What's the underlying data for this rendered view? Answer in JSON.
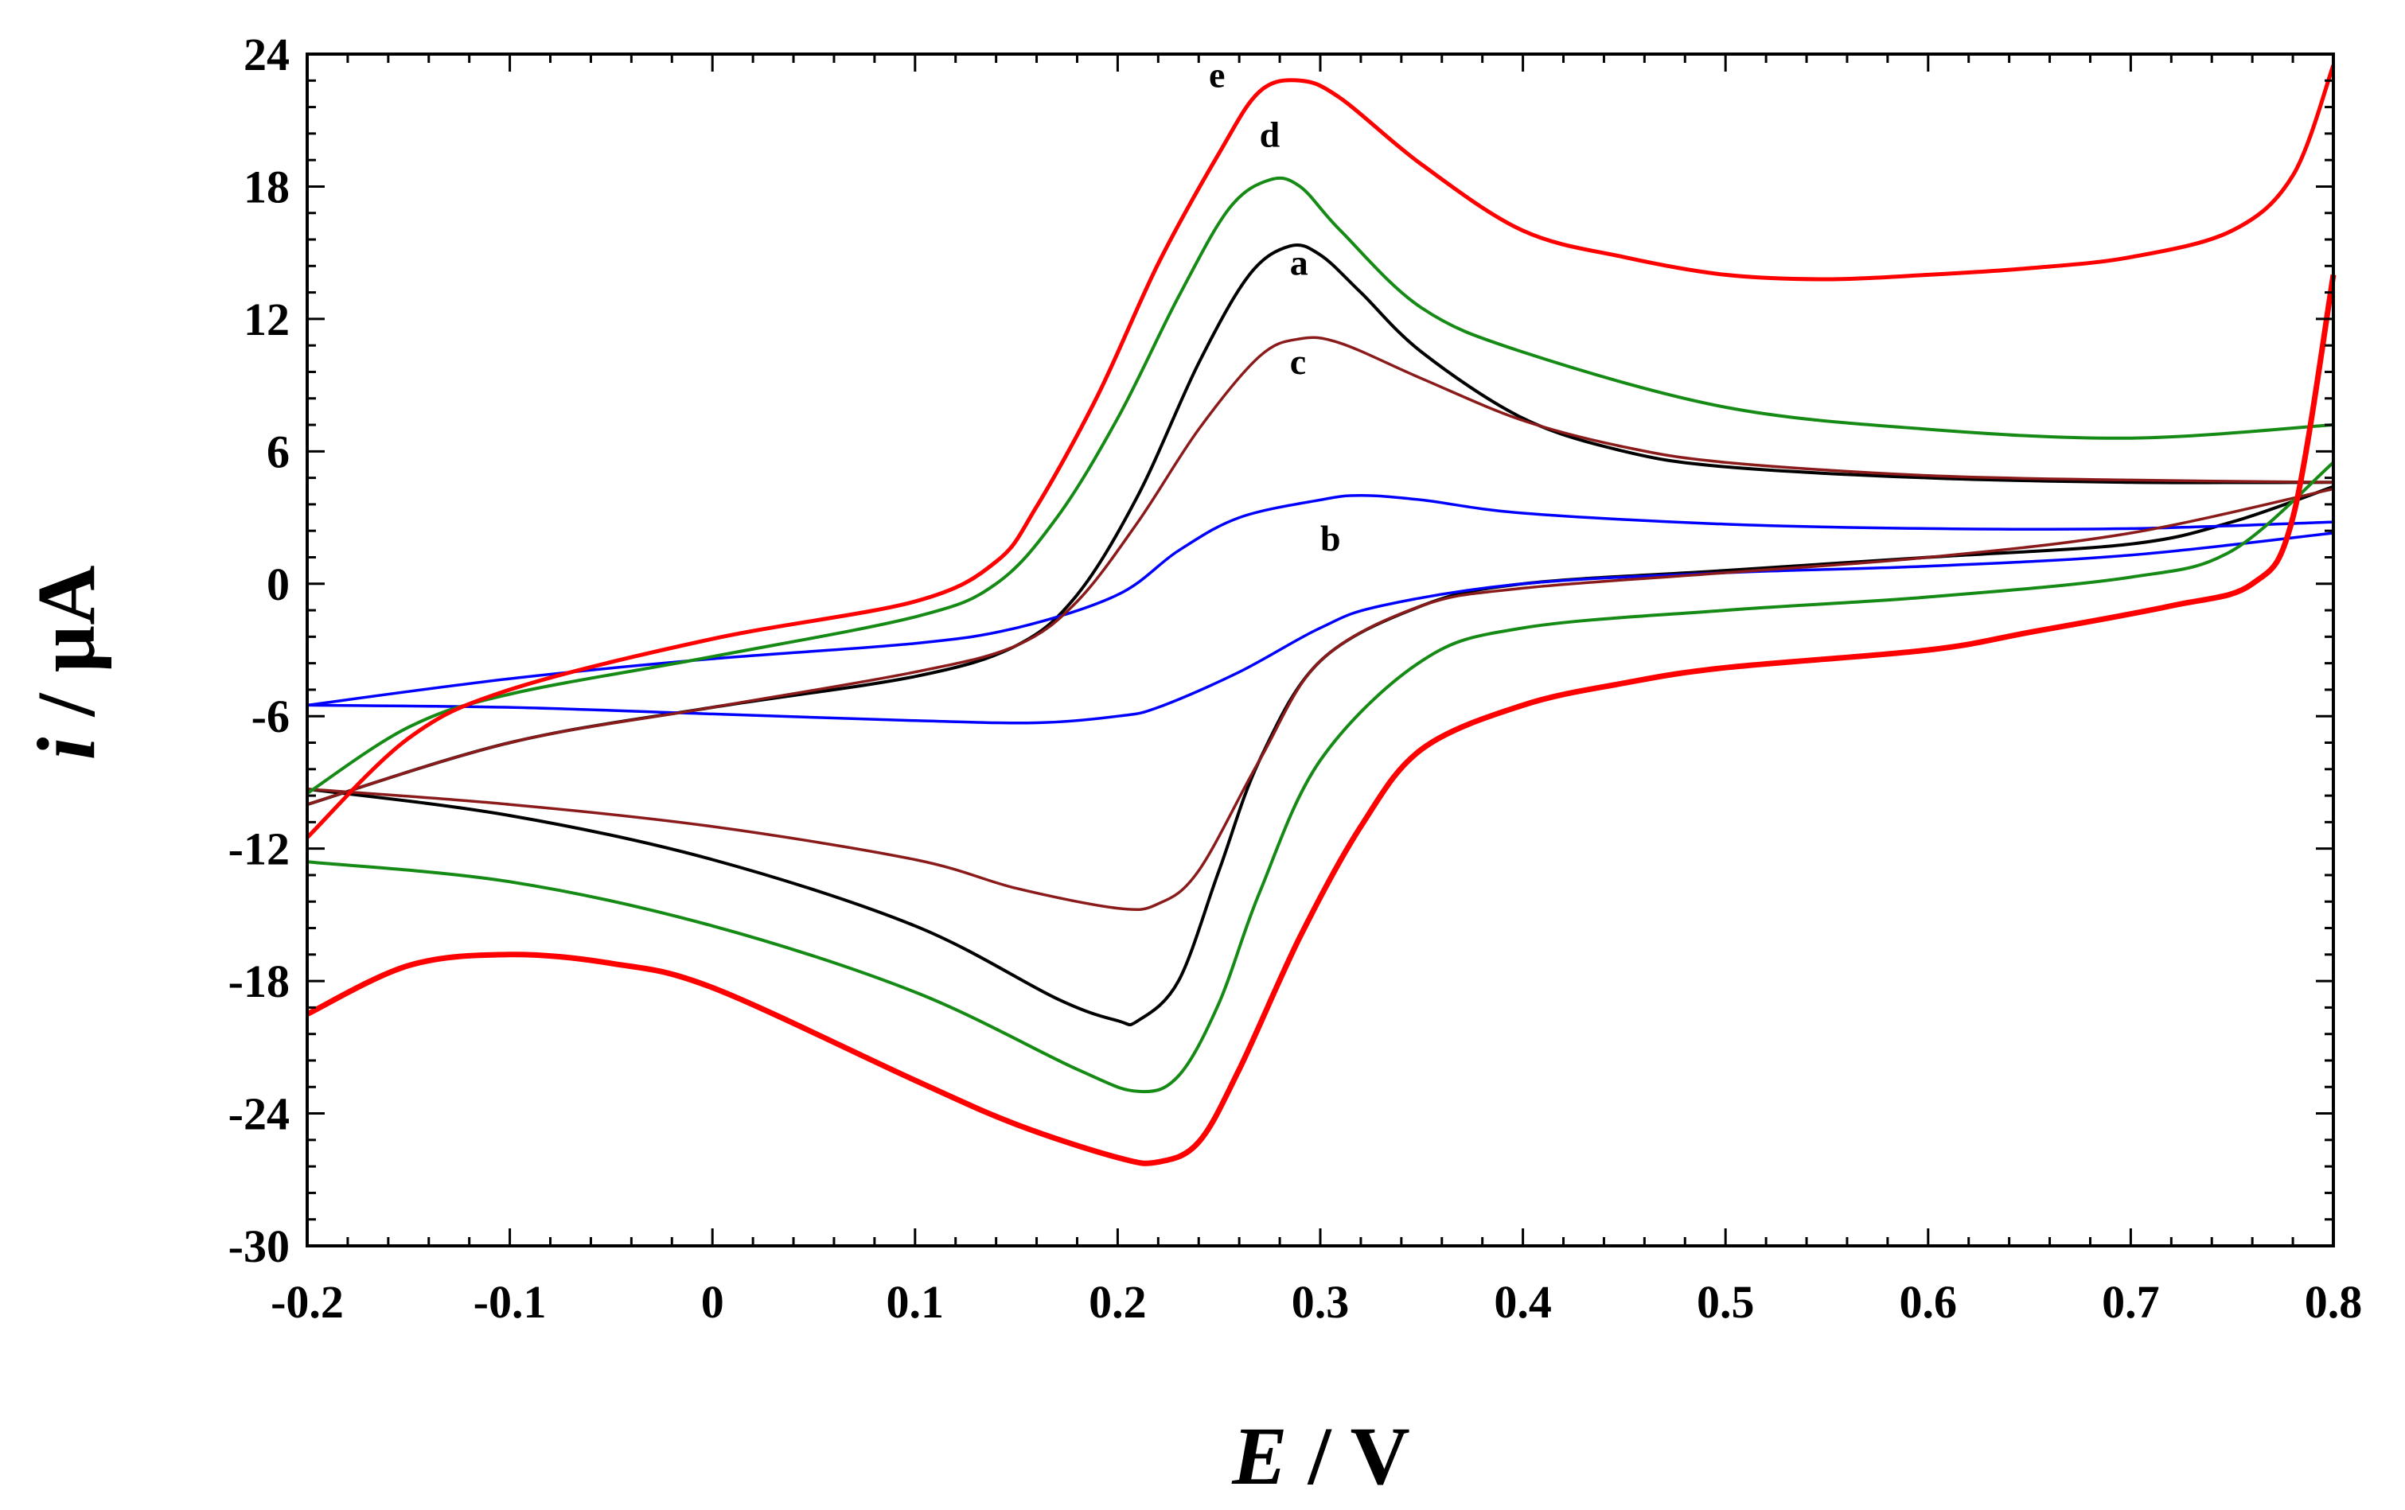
{
  "chart_data": {
    "type": "line",
    "title": "",
    "xlabel_var": "E",
    "xlabel_unit": " / V",
    "ylabel_var": "i",
    "ylabel_unit": " / µA",
    "xlim": [
      -0.2,
      0.8
    ],
    "ylim": [
      -30,
      24
    ],
    "x_ticks": [
      -0.2,
      -0.1,
      0,
      0.1,
      0.2,
      0.3,
      0.4,
      0.5,
      0.6,
      0.7,
      0.8
    ],
    "x_tick_labels": [
      "-0.2",
      "-0.1",
      "0",
      "0.1",
      "0.2",
      "0.3",
      "0.4",
      "0.5",
      "0.6",
      "0.7",
      "0.8"
    ],
    "y_ticks": [
      24,
      18,
      12,
      6,
      0,
      -6,
      -12,
      -18,
      -24,
      -30
    ],
    "y_tick_labels": [
      "24",
      "18",
      "12",
      "6",
      "0",
      "-6",
      "-12",
      "-18",
      "-24",
      "-30"
    ],
    "grid": false,
    "series": [
      {
        "name": "a",
        "color": "#000000",
        "label_at": [
          0.285,
          14
        ],
        "anodic": [
          [
            -0.2,
            -10
          ],
          [
            -0.1,
            -7.2
          ],
          [
            0,
            -5.6
          ],
          [
            0.1,
            -4.2
          ],
          [
            0.15,
            -2.8
          ],
          [
            0.18,
            -0.5
          ],
          [
            0.21,
            4
          ],
          [
            0.24,
            10
          ],
          [
            0.265,
            14
          ],
          [
            0.285,
            15.3
          ],
          [
            0.3,
            14.9
          ],
          [
            0.32,
            13.2
          ],
          [
            0.35,
            10.5
          ],
          [
            0.4,
            7.5
          ],
          [
            0.45,
            6
          ],
          [
            0.5,
            5.3
          ],
          [
            0.6,
            4.8
          ],
          [
            0.7,
            4.6
          ],
          [
            0.8,
            4.6
          ]
        ],
        "cathodic": [
          [
            0.8,
            4.4
          ],
          [
            0.75,
            2.8
          ],
          [
            0.7,
            1.8
          ],
          [
            0.6,
            1.2
          ],
          [
            0.5,
            0.6
          ],
          [
            0.4,
            0
          ],
          [
            0.35,
            -1
          ],
          [
            0.3,
            -3.5
          ],
          [
            0.27,
            -8
          ],
          [
            0.25,
            -13
          ],
          [
            0.23,
            -18
          ],
          [
            0.21,
            -19.8
          ],
          [
            0.2,
            -19.8
          ],
          [
            0.17,
            -18.8
          ],
          [
            0.1,
            -15.5
          ],
          [
            0,
            -12.5
          ],
          [
            -0.1,
            -10.5
          ],
          [
            -0.2,
            -9.3
          ]
        ]
      },
      {
        "name": "b",
        "color": "#0000ff",
        "label_at": [
          0.3,
          1.5
        ],
        "anodic": [
          [
            -0.2,
            -5.5
          ],
          [
            -0.1,
            -4.3
          ],
          [
            0,
            -3.4
          ],
          [
            0.1,
            -2.7
          ],
          [
            0.15,
            -2
          ],
          [
            0.2,
            -0.5
          ],
          [
            0.23,
            1.5
          ],
          [
            0.26,
            3
          ],
          [
            0.3,
            3.8
          ],
          [
            0.32,
            4
          ],
          [
            0.35,
            3.8
          ],
          [
            0.4,
            3.2
          ],
          [
            0.5,
            2.7
          ],
          [
            0.6,
            2.5
          ],
          [
            0.7,
            2.5
          ],
          [
            0.8,
            2.8
          ]
        ],
        "cathodic": [
          [
            0.8,
            2.3
          ],
          [
            0.7,
            1.3
          ],
          [
            0.6,
            0.8
          ],
          [
            0.5,
            0.5
          ],
          [
            0.4,
            0
          ],
          [
            0.33,
            -1
          ],
          [
            0.3,
            -2
          ],
          [
            0.26,
            -4
          ],
          [
            0.22,
            -5.6
          ],
          [
            0.2,
            -6
          ],
          [
            0.16,
            -6.3
          ],
          [
            0.1,
            -6.2
          ],
          [
            0,
            -5.9
          ],
          [
            -0.1,
            -5.6
          ],
          [
            -0.2,
            -5.5
          ]
        ]
      },
      {
        "name": "c",
        "color": "#8b1a1a",
        "label_at": [
          0.285,
          9.5
        ],
        "anodic": [
          [
            -0.2,
            -10
          ],
          [
            -0.1,
            -7.2
          ],
          [
            0,
            -5.6
          ],
          [
            0.1,
            -4
          ],
          [
            0.15,
            -2.8
          ],
          [
            0.18,
            -0.8
          ],
          [
            0.21,
            2.8
          ],
          [
            0.24,
            7
          ],
          [
            0.27,
            10.3
          ],
          [
            0.29,
            11.1
          ],
          [
            0.31,
            10.9
          ],
          [
            0.35,
            9.3
          ],
          [
            0.4,
            7.4
          ],
          [
            0.45,
            6.2
          ],
          [
            0.5,
            5.5
          ],
          [
            0.6,
            4.9
          ],
          [
            0.7,
            4.7
          ],
          [
            0.8,
            4.6
          ]
        ],
        "cathodic": [
          [
            0.8,
            4.3
          ],
          [
            0.7,
            2.3
          ],
          [
            0.6,
            1.2
          ],
          [
            0.5,
            0.5
          ],
          [
            0.4,
            -0.2
          ],
          [
            0.35,
            -1
          ],
          [
            0.3,
            -3.5
          ],
          [
            0.27,
            -8
          ],
          [
            0.24,
            -13
          ],
          [
            0.22,
            -14.5
          ],
          [
            0.2,
            -14.7
          ],
          [
            0.15,
            -13.8
          ],
          [
            0.1,
            -12.5
          ],
          [
            0,
            -11
          ],
          [
            -0.1,
            -10
          ],
          [
            -0.2,
            -9.3
          ]
        ]
      },
      {
        "name": "d",
        "color": "#158a15",
        "label_at": [
          0.27,
          19.8
        ],
        "anodic": [
          [
            -0.2,
            -9.5
          ],
          [
            -0.15,
            -6.5
          ],
          [
            -0.1,
            -5
          ],
          [
            0,
            -3.3
          ],
          [
            0.1,
            -1.5
          ],
          [
            0.14,
            0
          ],
          [
            0.17,
            3
          ],
          [
            0.2,
            7.5
          ],
          [
            0.23,
            13
          ],
          [
            0.255,
            17
          ],
          [
            0.275,
            18.3
          ],
          [
            0.29,
            18
          ],
          [
            0.31,
            16
          ],
          [
            0.35,
            12.5
          ],
          [
            0.4,
            10.5
          ],
          [
            0.5,
            8
          ],
          [
            0.6,
            7
          ],
          [
            0.7,
            6.6
          ],
          [
            0.8,
            7.2
          ]
        ],
        "cathodic": [
          [
            0.8,
            5.5
          ],
          [
            0.75,
            1.5
          ],
          [
            0.7,
            0.3
          ],
          [
            0.6,
            -0.6
          ],
          [
            0.5,
            -1.2
          ],
          [
            0.4,
            -2
          ],
          [
            0.35,
            -3.5
          ],
          [
            0.3,
            -8
          ],
          [
            0.27,
            -14
          ],
          [
            0.25,
            -19
          ],
          [
            0.23,
            -22.3
          ],
          [
            0.21,
            -23
          ],
          [
            0.18,
            -22
          ],
          [
            0.1,
            -18.5
          ],
          [
            0,
            -15.5
          ],
          [
            -0.1,
            -13.5
          ],
          [
            -0.2,
            -12.6
          ]
        ]
      },
      {
        "name": "e",
        "color": "#ff0000",
        "label_at": [
          0.245,
          22.5
        ],
        "anodic": [
          [
            -0.2,
            -11.5
          ],
          [
            -0.15,
            -7
          ],
          [
            -0.1,
            -4.8
          ],
          [
            0,
            -2.5
          ],
          [
            0.1,
            -0.8
          ],
          [
            0.14,
            1
          ],
          [
            0.16,
            3.5
          ],
          [
            0.19,
            8.5
          ],
          [
            0.22,
            14.5
          ],
          [
            0.25,
            19.5
          ],
          [
            0.27,
            22.3
          ],
          [
            0.29,
            22.8
          ],
          [
            0.31,
            22
          ],
          [
            0.35,
            19
          ],
          [
            0.4,
            16
          ],
          [
            0.45,
            14.8
          ],
          [
            0.5,
            14
          ],
          [
            0.55,
            13.8
          ],
          [
            0.6,
            14
          ],
          [
            0.65,
            14.3
          ],
          [
            0.7,
            14.8
          ],
          [
            0.75,
            16
          ],
          [
            0.78,
            18.5
          ],
          [
            0.8,
            23.5
          ]
        ],
        "cathodic": [
          [
            0.8,
            14
          ],
          [
            0.78,
            3
          ],
          [
            0.76,
            0
          ],
          [
            0.72,
            -1
          ],
          [
            0.65,
            -2.2
          ],
          [
            0.6,
            -3
          ],
          [
            0.5,
            -3.8
          ],
          [
            0.45,
            -4.5
          ],
          [
            0.4,
            -5.5
          ],
          [
            0.35,
            -7.5
          ],
          [
            0.32,
            -11
          ],
          [
            0.29,
            -16
          ],
          [
            0.26,
            -22
          ],
          [
            0.24,
            -25.3
          ],
          [
            0.22,
            -26.2
          ],
          [
            0.2,
            -26
          ],
          [
            0.15,
            -24.5
          ],
          [
            0.1,
            -22.5
          ],
          [
            0,
            -18.3
          ],
          [
            -0.05,
            -17.2
          ],
          [
            -0.1,
            -16.8
          ],
          [
            -0.15,
            -17.3
          ],
          [
            -0.2,
            -19.5
          ]
        ]
      }
    ]
  }
}
